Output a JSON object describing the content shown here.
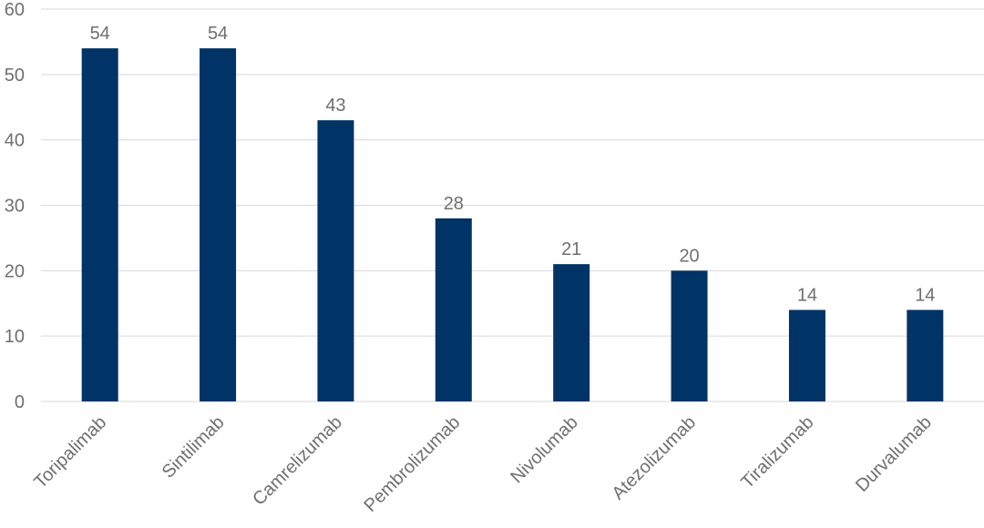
{
  "chart_data": {
    "type": "bar",
    "categories": [
      "Toripalimab",
      "Sintilimab",
      "Camrelizumab",
      "Pembrolizumab",
      "Nivolumab",
      "Atezolizumab",
      "Tiralizumab",
      "Durvalumab"
    ],
    "values": [
      54,
      54,
      43,
      28,
      21,
      20,
      14,
      14
    ],
    "data_labels": [
      "54",
      "54",
      "43",
      "28",
      "21",
      "20",
      "14",
      "14"
    ],
    "title": "",
    "xlabel": "",
    "ylabel": "",
    "ylim": [
      0,
      60
    ],
    "yticks": [
      0,
      10,
      20,
      30,
      40,
      50,
      60
    ],
    "ytick_labels": [
      "0",
      "10",
      "20",
      "30",
      "40",
      "50",
      "60"
    ],
    "grid": "horizontal",
    "legend": "none",
    "colors": {
      "bar": "#003366",
      "text": "#6f6f6f",
      "grid": "#d9d9d9"
    }
  }
}
